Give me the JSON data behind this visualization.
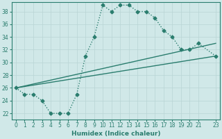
{
  "xlabel": "Humidex (Indice chaleur)",
  "ylabel": "",
  "xlim": [
    -0.5,
    23.5
  ],
  "ylim": [
    21,
    39.5
  ],
  "yticks": [
    22,
    24,
    26,
    28,
    30,
    32,
    34,
    36,
    38
  ],
  "xticks": [
    0,
    1,
    2,
    3,
    4,
    5,
    6,
    7,
    8,
    9,
    10,
    11,
    12,
    13,
    14,
    15,
    16,
    17,
    18,
    19,
    20,
    21,
    23
  ],
  "line_color": "#2a7d6e",
  "bg_color": "#d0e8e8",
  "grid_color": "#b8d4d4",
  "line1_x": [
    0,
    1,
    2,
    3,
    4,
    5,
    6,
    7,
    8,
    9,
    10,
    11,
    12,
    13,
    14,
    15,
    16,
    17,
    18,
    19,
    20,
    21,
    23
  ],
  "line1_y": [
    26,
    25,
    25,
    24,
    22,
    22,
    22,
    25,
    31,
    34,
    39,
    38,
    39,
    39,
    38,
    38,
    37,
    35,
    34,
    32,
    32,
    33,
    31
  ],
  "line2_x": [
    0,
    23
  ],
  "line2_y": [
    26,
    31
  ],
  "line3_x": [
    0,
    23
  ],
  "line3_y": [
    26,
    33
  ],
  "marker": "D",
  "markersize": 2.5,
  "linewidth": 1.0
}
